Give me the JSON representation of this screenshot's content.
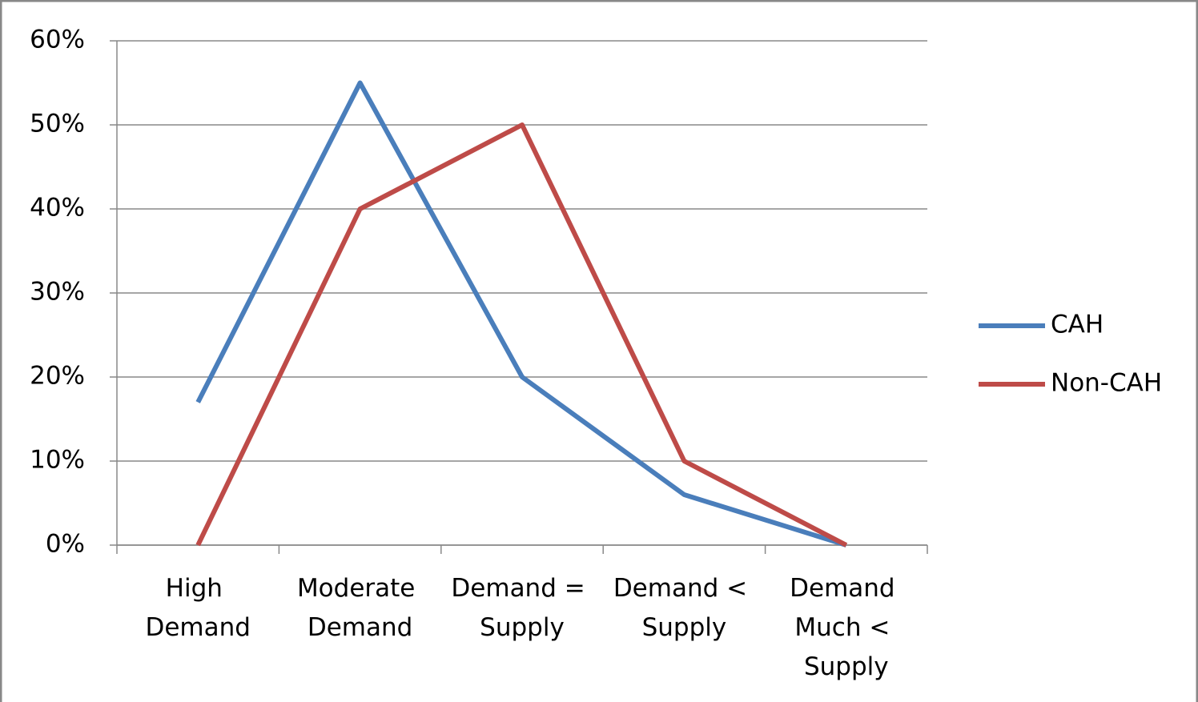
{
  "chart_data": {
    "type": "line",
    "categories": [
      "High Demand",
      "Moderate Demand",
      "Demand = Supply",
      "Demand < Supply",
      "Demand Much < Supply"
    ],
    "series": [
      {
        "name": "CAH",
        "color": "#4a7ebb",
        "values": [
          17,
          55,
          20,
          6,
          0
        ]
      },
      {
        "name": "Non-CAH",
        "color": "#be4b48",
        "values": [
          0,
          40,
          50,
          10,
          0
        ]
      }
    ],
    "ylim": [
      0,
      60
    ],
    "yticks": [
      {
        "value": 0,
        "label": "0%"
      },
      {
        "value": 10,
        "label": "10%"
      },
      {
        "value": 20,
        "label": "20%"
      },
      {
        "value": 30,
        "label": "30%"
      },
      {
        "value": 40,
        "label": "40%"
      },
      {
        "value": 50,
        "label": "50%"
      },
      {
        "value": 60,
        "label": "60%"
      }
    ],
    "grid": true,
    "legend": "right"
  }
}
